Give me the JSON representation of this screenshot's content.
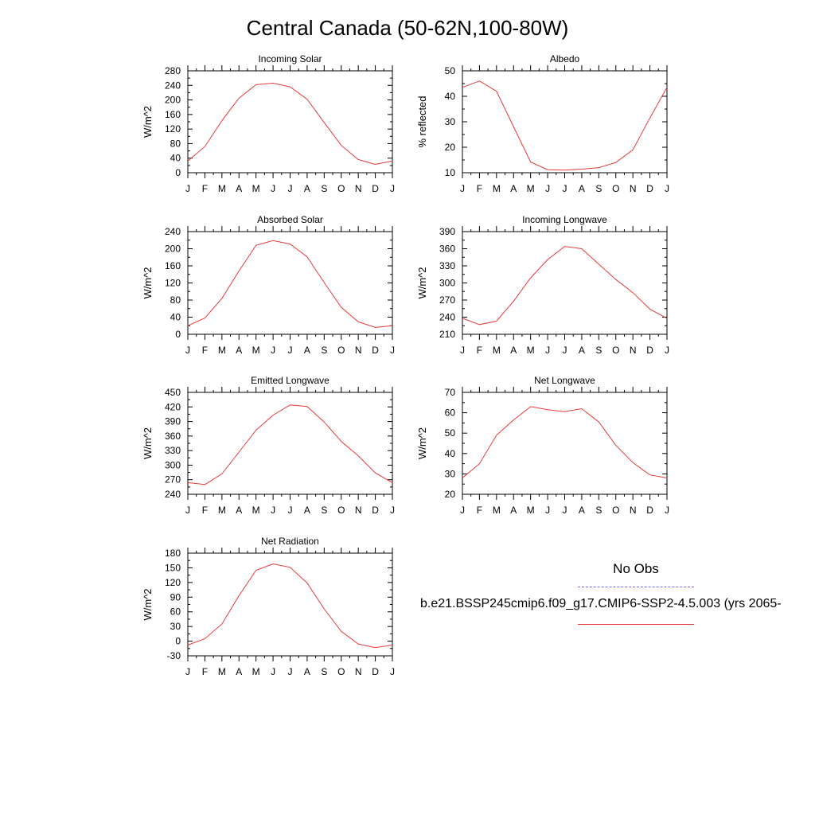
{
  "title": "Central Canada (50-62N,100-80W)",
  "legend": {
    "obs_label": "No Obs",
    "model_label": "b.e21.BSSP245cmip6.f09_g17.CMIP6-SSP2-4.5.003 (yrs 2065-",
    "obs_color": "#6666ee",
    "model_color": "#e23b3b"
  },
  "chart_data": [
    {
      "type": "line",
      "title": "Incoming Solar",
      "ylabel": "W/m^2",
      "categories": [
        "J",
        "F",
        "M",
        "A",
        "M",
        "J",
        "J",
        "A",
        "S",
        "O",
        "N",
        "D",
        "J"
      ],
      "ylim": [
        0,
        280
      ],
      "yticks": [
        0,
        40,
        80,
        120,
        160,
        200,
        240,
        280
      ],
      "values": [
        32,
        72,
        143,
        205,
        242,
        246,
        236,
        202,
        138,
        75,
        36,
        23,
        32
      ]
    },
    {
      "type": "line",
      "title": "Albedo",
      "ylabel": "% reflected",
      "categories": [
        "J",
        "F",
        "M",
        "A",
        "M",
        "J",
        "J",
        "A",
        "S",
        "O",
        "N",
        "D",
        "J"
      ],
      "ylim": [
        10,
        50
      ],
      "yticks": [
        10,
        20,
        30,
        40,
        50
      ],
      "values": [
        43.5,
        46,
        42,
        28,
        14.2,
        11.2,
        11,
        11.4,
        12,
        14,
        19,
        31.5,
        43.5
      ]
    },
    {
      "type": "line",
      "title": "Absorbed Solar",
      "ylabel": "W/m^2",
      "categories": [
        "J",
        "F",
        "M",
        "A",
        "M",
        "J",
        "J",
        "A",
        "S",
        "O",
        "N",
        "D",
        "J"
      ],
      "ylim": [
        0,
        240
      ],
      "yticks": [
        0,
        40,
        80,
        120,
        160,
        200,
        240
      ],
      "values": [
        20,
        38,
        84,
        148,
        208,
        219,
        211,
        181,
        121,
        63,
        29,
        16,
        20
      ]
    },
    {
      "type": "line",
      "title": "Incoming Longwave",
      "ylabel": "W/m^2",
      "categories": [
        "J",
        "F",
        "M",
        "A",
        "M",
        "J",
        "J",
        "A",
        "S",
        "O",
        "N",
        "D",
        "J"
      ],
      "ylim": [
        210,
        390
      ],
      "yticks": [
        210,
        240,
        270,
        300,
        330,
        360,
        390
      ],
      "values": [
        238,
        227,
        233,
        268,
        309,
        341,
        364,
        360,
        333,
        306,
        283,
        254,
        238
      ]
    },
    {
      "type": "line",
      "title": "Emitted Longwave",
      "ylabel": "W/m^2",
      "categories": [
        "J",
        "F",
        "M",
        "A",
        "M",
        "J",
        "J",
        "A",
        "S",
        "O",
        "N",
        "D",
        "J"
      ],
      "ylim": [
        240,
        450
      ],
      "yticks": [
        240,
        270,
        300,
        330,
        360,
        390,
        420,
        450
      ],
      "values": [
        264,
        260,
        282,
        327,
        372,
        403,
        424,
        421,
        389,
        349,
        319,
        284,
        264
      ]
    },
    {
      "type": "line",
      "title": "Net Longwave",
      "ylabel": "W/m^2",
      "categories": [
        "J",
        "F",
        "M",
        "A",
        "M",
        "J",
        "J",
        "A",
        "S",
        "O",
        "N",
        "D",
        "J"
      ],
      "ylim": [
        20,
        70
      ],
      "yticks": [
        20,
        30,
        40,
        50,
        60,
        70
      ],
      "values": [
        28,
        35,
        49,
        56.5,
        63,
        61.5,
        60.5,
        62,
        55.5,
        44,
        35.5,
        29.5,
        28
      ]
    },
    {
      "type": "line",
      "title": "Net Radiation",
      "ylabel": "W/m^2",
      "categories": [
        "J",
        "F",
        "M",
        "A",
        "M",
        "J",
        "J",
        "A",
        "S",
        "O",
        "N",
        "D",
        "J"
      ],
      "ylim": [
        -30,
        180
      ],
      "yticks": [
        -30,
        0,
        30,
        60,
        90,
        120,
        150,
        180
      ],
      "values": [
        -8,
        5,
        35,
        93,
        145,
        158,
        151,
        119,
        66,
        20,
        -6,
        -13,
        -8
      ]
    }
  ]
}
